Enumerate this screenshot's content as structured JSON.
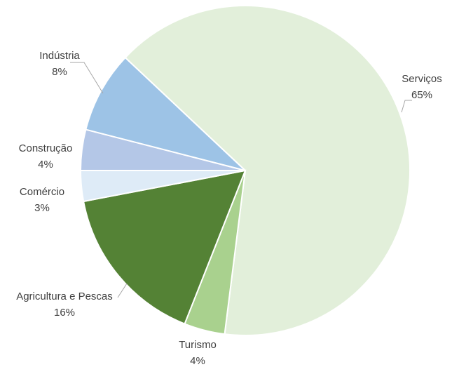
{
  "chart_data": {
    "type": "pie",
    "categories": [
      "Serviços",
      "Turismo",
      "Agricultura e Pescas",
      "Comércio",
      "Construção",
      "Indústria"
    ],
    "values": [
      65,
      4,
      16,
      3,
      4,
      8
    ],
    "value_labels": [
      "65%",
      "4%",
      "16%",
      "3%",
      "4%",
      "8%"
    ],
    "colors": [
      "#e2efda",
      "#a9d18e",
      "#548235",
      "#deebf7",
      "#b4c7e7",
      "#9dc3e6"
    ]
  }
}
